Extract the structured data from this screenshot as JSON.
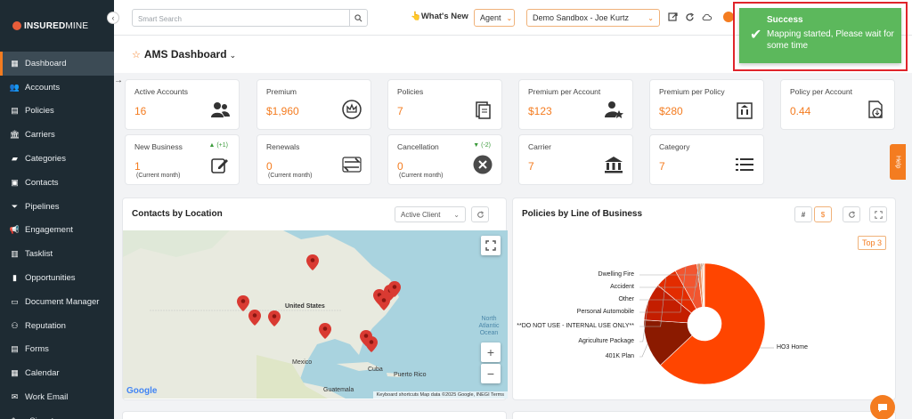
{
  "brand": {
    "name_bold": "INSURED",
    "name_light": "MINE"
  },
  "sidebar": {
    "items": [
      {
        "label": "Dashboard",
        "icon": "grid-icon",
        "active": true
      },
      {
        "label": "Accounts",
        "icon": "users-icon"
      },
      {
        "label": "Policies",
        "icon": "document-icon"
      },
      {
        "label": "Carriers",
        "icon": "bank-icon"
      },
      {
        "label": "Categories",
        "icon": "tag-icon"
      },
      {
        "label": "Contacts",
        "icon": "contact-card-icon"
      },
      {
        "label": "Pipelines",
        "icon": "funnel-icon"
      },
      {
        "label": "Engagement",
        "icon": "megaphone-icon"
      },
      {
        "label": "Tasklist",
        "icon": "clipboard-icon"
      },
      {
        "label": "Opportunities",
        "icon": "bar-chart-icon"
      },
      {
        "label": "Document Manager",
        "icon": "folder-icon"
      },
      {
        "label": "Reputation",
        "icon": "network-icon"
      },
      {
        "label": "Forms",
        "icon": "form-icon"
      },
      {
        "label": "Calendar",
        "icon": "calendar-icon"
      },
      {
        "label": "Work Email",
        "icon": "mail-icon"
      },
      {
        "label": "eSignature",
        "icon": "pen-icon"
      }
    ]
  },
  "topbar": {
    "search_placeholder": "Smart Search",
    "whats_new": "What's New",
    "role_select": "Agent",
    "account_select": "Demo Sandbox - Joe Kurtz"
  },
  "dashboard": {
    "title": "AMS Dashboard"
  },
  "kpis": [
    {
      "label": "Active Accounts",
      "value": "16",
      "icon": "users-icon"
    },
    {
      "label": "Premium",
      "value": "$1,960",
      "icon": "crown-badge-icon"
    },
    {
      "label": "Policies",
      "value": "7",
      "icon": "documents-icon"
    },
    {
      "label": "Premium per Account",
      "value": "$123",
      "icon": "user-star-icon"
    },
    {
      "label": "Premium per Policy",
      "value": "$280",
      "icon": "building-doc-icon"
    },
    {
      "label": "Policy per Account",
      "value": "0.44",
      "icon": "doc-download-icon"
    },
    {
      "label": "New Business",
      "value": "1",
      "sub": "(Current month)",
      "delta": "▲ (+1)",
      "icon": "edit-doc-icon"
    },
    {
      "label": "Renewals",
      "value": "0",
      "sub": "(Current month)",
      "icon": "exchange-icon"
    },
    {
      "label": "Cancellation",
      "value": "0",
      "sub": "(Current month)",
      "delta": "▼ (-2)",
      "icon": "x-circle-icon"
    },
    {
      "label": "Carrier",
      "value": "7",
      "icon": "bank-icon"
    },
    {
      "label": "Category",
      "value": "7",
      "icon": "list-icon"
    }
  ],
  "contacts_panel": {
    "title": "Contacts by Location",
    "filter": "Active Client",
    "map_labels": {
      "us": "United States",
      "mexico": "Mexico",
      "cuba": "Cuba",
      "puerto_rico": "Puerto Rico",
      "guatemala": "Guatemala",
      "ocean": "North Atlantic Ocean"
    },
    "attribution": "Keyboard shortcuts  Map data ©2025 Google, INEGI  Terms",
    "google": "Google"
  },
  "policies_panel": {
    "title": "Policies by Line of Business",
    "toggle_count": "#",
    "toggle_amount": "$",
    "top_filter": "Top 3"
  },
  "toast": {
    "title": "Success",
    "message": "Mapping started, Please wait for some time"
  },
  "help_label": "Help",
  "chart_data": {
    "type": "pie",
    "title": "Policies by Line of Business",
    "categories": [
      "HO3 Home",
      "401K Plan",
      "Agriculture Package",
      "**DO NOT USE - INTERNAL USE ONLY**",
      "Personal Automobile",
      "Other",
      "Accident",
      "Dwelling Fire"
    ],
    "values": [
      63,
      13,
      10,
      6,
      6,
      1,
      0.5,
      0.5
    ],
    "colors": [
      "#ff4500",
      "#8b1a00",
      "#c41e00",
      "#e32c00",
      "#f2552f",
      "#e88a5a",
      "#f7b08a",
      "#fcd9c2"
    ],
    "donut": true
  }
}
